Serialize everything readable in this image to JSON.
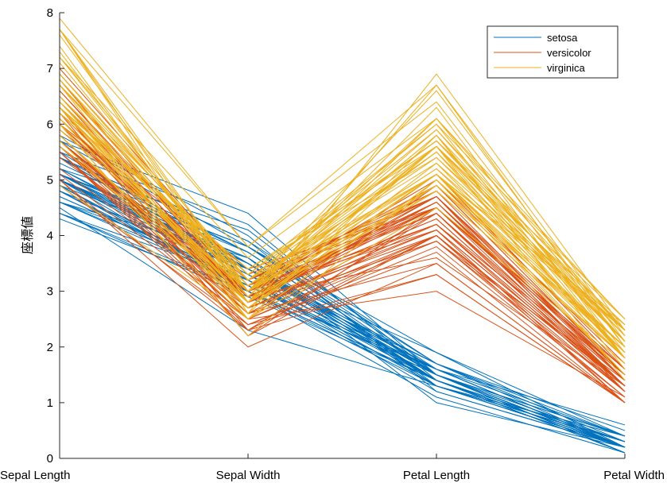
{
  "chart_data": {
    "type": "line",
    "subtype": "parallel-coordinates",
    "title": "",
    "xlabel": "",
    "ylabel": "座標値",
    "ylim": [
      0,
      8
    ],
    "yticks": [
      0,
      1,
      2,
      3,
      4,
      5,
      6,
      7,
      8
    ],
    "grid": false,
    "legend_position": "top-right",
    "categories": [
      "Sepal Length",
      "Sepal Width",
      "Petal Length",
      "Petal Width"
    ],
    "series": [
      {
        "name": "setosa",
        "color": "#0072BD",
        "lines": [
          [
            5.1,
            3.5,
            1.4,
            0.2
          ],
          [
            4.9,
            3.0,
            1.4,
            0.2
          ],
          [
            4.7,
            3.2,
            1.3,
            0.2
          ],
          [
            4.6,
            3.1,
            1.5,
            0.2
          ],
          [
            5.0,
            3.6,
            1.4,
            0.2
          ],
          [
            5.4,
            3.9,
            1.7,
            0.4
          ],
          [
            4.6,
            3.4,
            1.4,
            0.3
          ],
          [
            5.0,
            3.4,
            1.5,
            0.2
          ],
          [
            4.4,
            2.9,
            1.4,
            0.2
          ],
          [
            4.9,
            3.1,
            1.5,
            0.1
          ],
          [
            5.4,
            3.7,
            1.5,
            0.2
          ],
          [
            4.8,
            3.4,
            1.6,
            0.2
          ],
          [
            4.8,
            3.0,
            1.4,
            0.1
          ],
          [
            4.3,
            3.0,
            1.1,
            0.1
          ],
          [
            5.8,
            4.0,
            1.2,
            0.2
          ],
          [
            5.7,
            4.4,
            1.5,
            0.4
          ],
          [
            5.4,
            3.9,
            1.3,
            0.4
          ],
          [
            5.1,
            3.5,
            1.4,
            0.3
          ],
          [
            5.7,
            3.8,
            1.7,
            0.3
          ],
          [
            5.1,
            3.8,
            1.5,
            0.3
          ],
          [
            5.4,
            3.4,
            1.7,
            0.2
          ],
          [
            5.1,
            3.7,
            1.5,
            0.4
          ],
          [
            4.6,
            3.6,
            1.0,
            0.2
          ],
          [
            5.1,
            3.3,
            1.7,
            0.5
          ],
          [
            4.8,
            3.4,
            1.9,
            0.2
          ],
          [
            5.0,
            3.0,
            1.6,
            0.2
          ],
          [
            5.0,
            3.4,
            1.6,
            0.4
          ],
          [
            5.2,
            3.5,
            1.5,
            0.2
          ],
          [
            5.2,
            3.4,
            1.4,
            0.2
          ],
          [
            4.7,
            3.2,
            1.6,
            0.2
          ],
          [
            4.8,
            3.1,
            1.6,
            0.2
          ],
          [
            5.4,
            3.4,
            1.5,
            0.4
          ],
          [
            5.2,
            4.1,
            1.5,
            0.1
          ],
          [
            5.5,
            4.2,
            1.4,
            0.2
          ],
          [
            4.9,
            3.1,
            1.5,
            0.2
          ],
          [
            5.0,
            3.2,
            1.2,
            0.2
          ],
          [
            5.5,
            3.5,
            1.3,
            0.2
          ],
          [
            4.9,
            3.6,
            1.4,
            0.1
          ],
          [
            4.4,
            3.0,
            1.3,
            0.2
          ],
          [
            5.1,
            3.4,
            1.5,
            0.2
          ],
          [
            5.0,
            3.5,
            1.3,
            0.3
          ],
          [
            4.5,
            2.3,
            1.3,
            0.3
          ],
          [
            4.4,
            3.2,
            1.3,
            0.2
          ],
          [
            5.0,
            3.5,
            1.6,
            0.6
          ],
          [
            5.1,
            3.8,
            1.9,
            0.4
          ],
          [
            4.8,
            3.0,
            1.4,
            0.3
          ],
          [
            5.1,
            3.8,
            1.6,
            0.2
          ],
          [
            4.6,
            3.2,
            1.4,
            0.2
          ],
          [
            5.3,
            3.7,
            1.5,
            0.2
          ],
          [
            5.0,
            3.3,
            1.4,
            0.2
          ]
        ]
      },
      {
        "name": "versicolor",
        "color": "#D95319",
        "lines": [
          [
            7.0,
            3.2,
            4.7,
            1.4
          ],
          [
            6.4,
            3.2,
            4.5,
            1.5
          ],
          [
            6.9,
            3.1,
            4.9,
            1.5
          ],
          [
            5.5,
            2.3,
            4.0,
            1.3
          ],
          [
            6.5,
            2.8,
            4.6,
            1.5
          ],
          [
            5.7,
            2.8,
            4.5,
            1.3
          ],
          [
            6.3,
            3.3,
            4.7,
            1.6
          ],
          [
            4.9,
            2.4,
            3.3,
            1.0
          ],
          [
            6.6,
            2.9,
            4.6,
            1.3
          ],
          [
            5.2,
            2.7,
            3.9,
            1.4
          ],
          [
            5.0,
            2.0,
            3.5,
            1.0
          ],
          [
            5.9,
            3.0,
            4.2,
            1.5
          ],
          [
            6.0,
            2.2,
            4.0,
            1.0
          ],
          [
            6.1,
            2.9,
            4.7,
            1.4
          ],
          [
            5.6,
            2.9,
            3.6,
            1.3
          ],
          [
            6.7,
            3.1,
            4.4,
            1.4
          ],
          [
            5.6,
            3.0,
            4.5,
            1.5
          ],
          [
            5.8,
            2.7,
            4.1,
            1.0
          ],
          [
            6.2,
            2.2,
            4.5,
            1.5
          ],
          [
            5.6,
            2.5,
            3.9,
            1.1
          ],
          [
            5.9,
            3.2,
            4.8,
            1.8
          ],
          [
            6.1,
            2.8,
            4.0,
            1.3
          ],
          [
            6.3,
            2.5,
            4.9,
            1.5
          ],
          [
            6.1,
            2.8,
            4.7,
            1.2
          ],
          [
            6.4,
            2.9,
            4.3,
            1.3
          ],
          [
            6.6,
            3.0,
            4.4,
            1.4
          ],
          [
            6.8,
            2.8,
            4.8,
            1.4
          ],
          [
            6.7,
            3.0,
            5.0,
            1.7
          ],
          [
            6.0,
            2.9,
            4.5,
            1.5
          ],
          [
            5.7,
            2.6,
            3.5,
            1.0
          ],
          [
            5.5,
            2.4,
            3.8,
            1.1
          ],
          [
            5.5,
            2.4,
            3.7,
            1.0
          ],
          [
            5.8,
            2.7,
            3.9,
            1.2
          ],
          [
            6.0,
            2.7,
            5.1,
            1.6
          ],
          [
            5.4,
            3.0,
            4.5,
            1.5
          ],
          [
            6.0,
            3.4,
            4.5,
            1.6
          ],
          [
            6.7,
            3.1,
            4.7,
            1.5
          ],
          [
            6.3,
            2.3,
            4.4,
            1.3
          ],
          [
            5.6,
            3.0,
            4.1,
            1.3
          ],
          [
            5.5,
            2.5,
            4.0,
            1.3
          ],
          [
            5.5,
            2.6,
            4.4,
            1.2
          ],
          [
            6.1,
            3.0,
            4.6,
            1.4
          ],
          [
            5.8,
            2.6,
            4.0,
            1.2
          ],
          [
            5.0,
            2.3,
            3.3,
            1.0
          ],
          [
            5.6,
            2.7,
            4.2,
            1.3
          ],
          [
            5.7,
            3.0,
            4.2,
            1.2
          ],
          [
            5.7,
            2.9,
            4.2,
            1.3
          ],
          [
            6.2,
            2.9,
            4.3,
            1.3
          ],
          [
            5.1,
            2.5,
            3.0,
            1.1
          ],
          [
            5.7,
            2.8,
            4.1,
            1.3
          ]
        ]
      },
      {
        "name": "virginica",
        "color": "#EDB120",
        "lines": [
          [
            6.3,
            3.3,
            6.0,
            2.5
          ],
          [
            5.8,
            2.7,
            5.1,
            1.9
          ],
          [
            7.1,
            3.0,
            5.9,
            2.1
          ],
          [
            6.3,
            2.9,
            5.6,
            1.8
          ],
          [
            6.5,
            3.0,
            5.8,
            2.2
          ],
          [
            7.6,
            3.0,
            6.6,
            2.1
          ],
          [
            4.9,
            2.5,
            4.5,
            1.7
          ],
          [
            7.3,
            2.9,
            6.3,
            1.8
          ],
          [
            6.7,
            2.5,
            5.8,
            1.8
          ],
          [
            7.2,
            3.6,
            6.1,
            2.5
          ],
          [
            6.5,
            3.2,
            5.1,
            2.0
          ],
          [
            6.4,
            2.7,
            5.3,
            1.9
          ],
          [
            6.8,
            3.0,
            5.5,
            2.1
          ],
          [
            5.7,
            2.5,
            5.0,
            2.0
          ],
          [
            5.8,
            2.8,
            5.1,
            2.4
          ],
          [
            6.4,
            3.2,
            5.3,
            2.3
          ],
          [
            6.5,
            3.0,
            5.5,
            1.8
          ],
          [
            7.7,
            3.8,
            6.7,
            2.2
          ],
          [
            7.7,
            2.6,
            6.9,
            2.3
          ],
          [
            6.0,
            2.2,
            5.0,
            1.5
          ],
          [
            6.9,
            3.2,
            5.7,
            2.3
          ],
          [
            5.6,
            2.8,
            4.9,
            2.0
          ],
          [
            7.7,
            2.8,
            6.7,
            2.0
          ],
          [
            6.3,
            2.7,
            4.9,
            1.8
          ],
          [
            6.7,
            3.3,
            5.7,
            2.1
          ],
          [
            7.2,
            3.2,
            6.0,
            1.8
          ],
          [
            6.2,
            2.8,
            4.8,
            1.8
          ],
          [
            6.1,
            3.0,
            4.9,
            1.8
          ],
          [
            6.4,
            2.8,
            5.6,
            2.1
          ],
          [
            7.2,
            3.0,
            5.8,
            1.6
          ],
          [
            7.4,
            2.8,
            6.1,
            1.9
          ],
          [
            7.9,
            3.8,
            6.4,
            2.0
          ],
          [
            6.4,
            2.8,
            5.6,
            2.2
          ],
          [
            6.3,
            2.8,
            5.1,
            1.5
          ],
          [
            6.1,
            2.6,
            5.6,
            1.4
          ],
          [
            7.7,
            3.0,
            6.1,
            2.3
          ],
          [
            6.3,
            3.4,
            5.6,
            2.4
          ],
          [
            6.4,
            3.1,
            5.5,
            1.8
          ],
          [
            6.0,
            3.0,
            4.8,
            1.8
          ],
          [
            6.9,
            3.1,
            5.4,
            2.1
          ],
          [
            6.7,
            3.1,
            5.6,
            2.4
          ],
          [
            6.9,
            3.1,
            5.1,
            2.3
          ],
          [
            5.8,
            2.7,
            5.1,
            1.9
          ],
          [
            6.8,
            3.2,
            5.9,
            2.3
          ],
          [
            6.7,
            3.3,
            5.7,
            2.5
          ],
          [
            6.7,
            3.0,
            5.2,
            2.3
          ],
          [
            6.3,
            2.5,
            5.0,
            1.9
          ],
          [
            6.5,
            3.0,
            5.2,
            2.0
          ],
          [
            6.2,
            3.4,
            5.4,
            2.3
          ],
          [
            5.9,
            3.0,
            5.1,
            1.8
          ]
        ]
      }
    ]
  }
}
